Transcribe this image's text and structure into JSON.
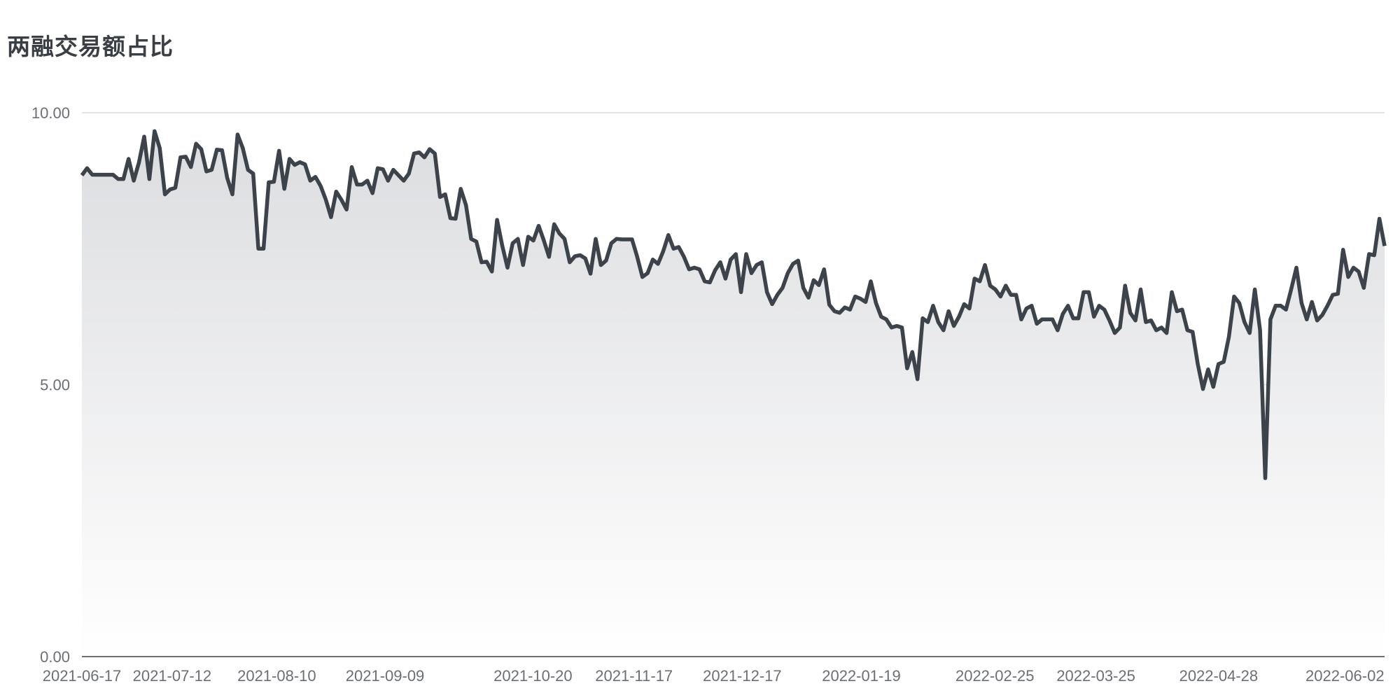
{
  "title": "两融交易额占比",
  "chart_data": {
    "type": "area",
    "title": "两融交易额占比",
    "xlabel": "",
    "ylabel": "",
    "ylim": [
      0,
      10
    ],
    "y_ticks": [
      "0.00",
      "5.00",
      "10.00"
    ],
    "x_ticks": [
      "2021-06-17",
      "2021-07-12",
      "2021-08-10",
      "2021-09-09",
      "2021-10-20",
      "2021-11-17",
      "2021-12-17",
      "2022-01-19",
      "2022-02-25",
      "2022-03-25",
      "2022-04-28",
      "2022-06-02"
    ],
    "grid": true,
    "line_color": "#3c434b",
    "fill_top_color": "#dcdde0",
    "fill_bottom_color": "#ffffff",
    "x_start": "2021-06-17",
    "x_end": "2022-06-13",
    "values": [
      8.85,
      8.98,
      8.86,
      8.86,
      8.86,
      8.86,
      8.86,
      8.78,
      8.78,
      9.15,
      8.75,
      9.09,
      9.56,
      8.78,
      9.66,
      9.35,
      8.5,
      8.59,
      8.62,
      9.18,
      9.19,
      9.0,
      9.43,
      9.33,
      8.92,
      8.95,
      9.32,
      9.31,
      8.8,
      8.5,
      9.6,
      9.35,
      8.95,
      8.88,
      7.5,
      7.5,
      8.72,
      8.73,
      9.3,
      8.6,
      9.15,
      9.04,
      9.09,
      9.05,
      8.75,
      8.82,
      8.65,
      8.4,
      8.08,
      8.55,
      8.4,
      8.22,
      9.0,
      8.68,
      8.68,
      8.75,
      8.52,
      8.98,
      8.96,
      8.75,
      8.95,
      8.85,
      8.75,
      8.88,
      9.25,
      9.27,
      9.18,
      9.33,
      9.25,
      8.45,
      8.5,
      8.06,
      8.05,
      8.6,
      8.3,
      7.68,
      7.63,
      7.25,
      7.26,
      7.08,
      8.03,
      7.55,
      7.15,
      7.6,
      7.68,
      7.2,
      7.72,
      7.65,
      7.92,
      7.65,
      7.35,
      7.95,
      7.78,
      7.68,
      7.25,
      7.36,
      7.38,
      7.32,
      7.04,
      7.68,
      7.2,
      7.28,
      7.6,
      7.68,
      7.67,
      7.67,
      7.67,
      7.35,
      6.98,
      7.05,
      7.3,
      7.22,
      7.45,
      7.75,
      7.5,
      7.53,
      7.35,
      7.12,
      7.15,
      7.12,
      6.9,
      6.88,
      7.1,
      7.25,
      6.95,
      7.3,
      7.4,
      6.7,
      7.4,
      7.05,
      7.2,
      7.25,
      6.7,
      6.48,
      6.65,
      6.78,
      7.05,
      7.22,
      7.28,
      6.78,
      6.6,
      6.92,
      6.83,
      7.12,
      6.47,
      6.35,
      6.32,
      6.42,
      6.38,
      6.62,
      6.58,
      6.52,
      6.9,
      6.5,
      6.25,
      6.2,
      6.05,
      6.08,
      6.05,
      5.3,
      5.6,
      5.1,
      6.22,
      6.15,
      6.45,
      6.15,
      6.0,
      6.35,
      6.08,
      6.25,
      6.48,
      6.4,
      6.95,
      6.9,
      7.2,
      6.82,
      6.75,
      6.62,
      6.82,
      6.65,
      6.65,
      6.2,
      6.4,
      6.45,
      6.12,
      6.2,
      6.2,
      6.2,
      6.0,
      6.3,
      6.45,
      6.22,
      6.22,
      6.7,
      6.7,
      6.25,
      6.45,
      6.38,
      6.18,
      5.95,
      6.05,
      6.82,
      6.32,
      6.18,
      6.75,
      6.15,
      6.18,
      6.0,
      6.05,
      5.95,
      6.7,
      6.35,
      6.38,
      6.0,
      5.97,
      5.38,
      4.92,
      5.28,
      4.96,
      5.38,
      5.42,
      5.88,
      6.62,
      6.5,
      6.15,
      5.95,
      6.75,
      6.0,
      3.28,
      6.2,
      6.45,
      6.45,
      6.38,
      6.75,
      7.15,
      6.5,
      6.2,
      6.52,
      6.18,
      6.28,
      6.45,
      6.65,
      6.67,
      7.48,
      6.98,
      7.15,
      7.08,
      6.78,
      7.4,
      7.38,
      8.05,
      7.55
    ]
  }
}
